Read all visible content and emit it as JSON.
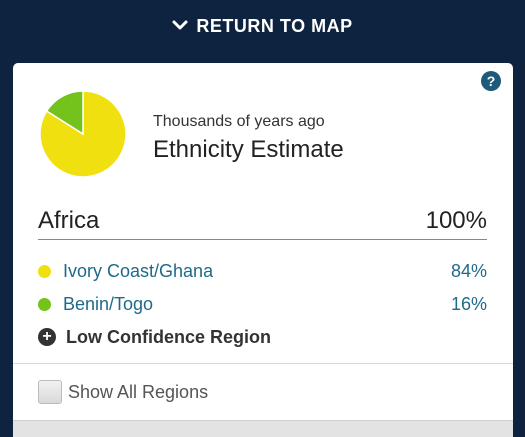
{
  "topbar": {
    "label": "RETURN TO MAP",
    "icon": "chevron-down-icon"
  },
  "card": {
    "help_label": "?",
    "subtitle": "Thousands of years ago",
    "title": "Ethnicity Estimate",
    "region": {
      "name": "Africa",
      "percent": "100%"
    },
    "items": [
      {
        "name": "Ivory Coast/Ghana",
        "percent": "84%",
        "value": 84,
        "color": "#f0e010"
      },
      {
        "name": "Benin/Togo",
        "percent": "16%",
        "value": 16,
        "color": "#74c21c"
      }
    ],
    "low_confidence": {
      "label": "Low Confidence Region",
      "icon": "plus-circle-icon"
    },
    "show_all": {
      "label": "Show All Regions",
      "checked": false
    }
  },
  "colors": {
    "background": "#0e2340",
    "link": "#1e6a8a"
  }
}
